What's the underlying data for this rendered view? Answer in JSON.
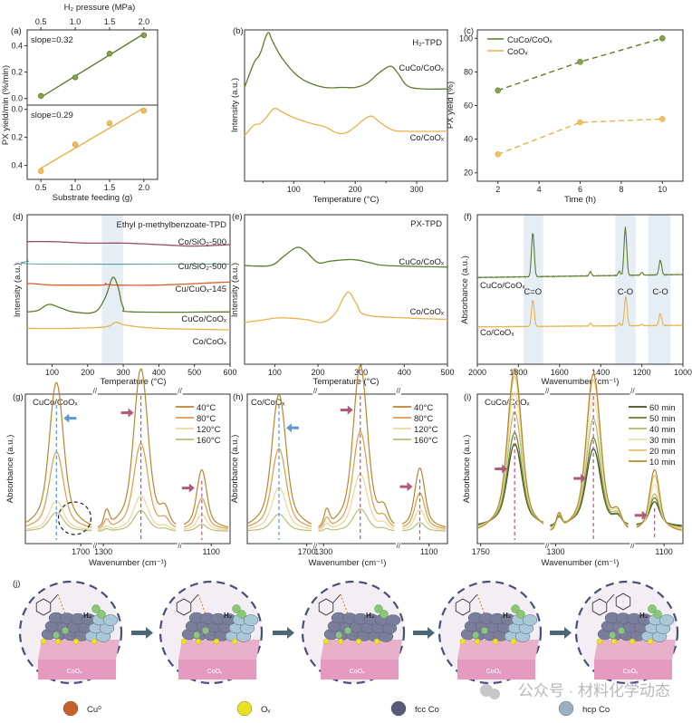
{
  "colors": {
    "green": "#5f7a2e",
    "orange": "#e8b24a",
    "pink": "#b05a7a",
    "blue": "#5a9bd5",
    "axis": "#222222",
    "band": "#e6eef5",
    "purple": "#8a4a6a",
    "teal": "#2a8a80",
    "red_orange": "#d9602a"
  },
  "chart_data": [
    {
      "id": "a",
      "type": "scatter",
      "panel_label": "(a)",
      "top_xlabel": "H₂ pressure (MPa)",
      "top_xticks": [
        "0.5",
        "1.0",
        "1.5",
        "2.0"
      ],
      "xlabel": "Substrate feeding (g)",
      "xticks": [
        "0.5",
        "1.0",
        "1.5",
        "2.0"
      ],
      "xlim": [
        0.3,
        2.2
      ],
      "ylabel": "PX yield/min (%/min)",
      "upper": {
        "yticks": [
          "0.0",
          "0.2",
          "0.4"
        ],
        "ylim": [
          -0.05,
          0.52
        ],
        "slope_label": "slope=0.32",
        "x": [
          0.5,
          1.0,
          1.5,
          2.0
        ],
        "y": [
          0.02,
          0.16,
          0.34,
          0.48
        ],
        "fit": [
          [
            0.5,
            0.01
          ],
          [
            2.0,
            0.49
          ]
        ]
      },
      "lower": {
        "yticks": [
          "0.0",
          "0.2",
          "0.4"
        ],
        "ylim": [
          0.5,
          -0.03
        ],
        "slope_label": "slope=0.29",
        "x": [
          0.5,
          1.0,
          1.5,
          2.0
        ],
        "y": [
          0.44,
          0.25,
          0.1,
          0.01
        ],
        "fit": [
          [
            0.5,
            0.42
          ],
          [
            2.0,
            -0.01
          ]
        ]
      }
    },
    {
      "id": "b",
      "type": "line",
      "panel_label": "(b)",
      "title": "H₂-TPD",
      "xlabel": "Temperature (°C)",
      "ylabel": "Intensity (a.u.)",
      "xticks": [
        "100",
        "200",
        "300"
      ],
      "xlim": [
        20,
        350
      ],
      "series": [
        {
          "name": "CuCo/CoOₓ",
          "points": [
            [
              20,
              0.62
            ],
            [
              35,
              0.78
            ],
            [
              45,
              0.84
            ],
            [
              55,
              0.96
            ],
            [
              60,
              0.98
            ],
            [
              65,
              0.93
            ],
            [
              80,
              0.82
            ],
            [
              100,
              0.72
            ],
            [
              120,
              0.66
            ],
            [
              150,
              0.62
            ],
            [
              180,
              0.62
            ],
            [
              200,
              0.62
            ],
            [
              220,
              0.65
            ],
            [
              240,
              0.72
            ],
            [
              258,
              0.76
            ],
            [
              270,
              0.71
            ],
            [
              285,
              0.63
            ],
            [
              310,
              0.61
            ],
            [
              350,
              0.61
            ]
          ]
        },
        {
          "name": "Co/CoOₓ",
          "points": [
            [
              20,
              0.3
            ],
            [
              35,
              0.37
            ],
            [
              45,
              0.38
            ],
            [
              55,
              0.42
            ],
            [
              68,
              0.48
            ],
            [
              80,
              0.46
            ],
            [
              100,
              0.42
            ],
            [
              130,
              0.38
            ],
            [
              150,
              0.36
            ],
            [
              170,
              0.32
            ],
            [
              185,
              0.32
            ],
            [
              200,
              0.36
            ],
            [
              215,
              0.41
            ],
            [
              227,
              0.43
            ],
            [
              240,
              0.39
            ],
            [
              260,
              0.34
            ],
            [
              280,
              0.33
            ],
            [
              350,
              0.33
            ]
          ]
        }
      ]
    },
    {
      "id": "c",
      "type": "line",
      "panel_label": "(c)",
      "xlabel": "Time (h)",
      "ylabel": "PX yield (%)",
      "xticks": [
        "2",
        "4",
        "6",
        "8",
        "10"
      ],
      "yticks": [
        "20",
        "40",
        "60",
        "80",
        "100"
      ],
      "xlim": [
        1,
        11
      ],
      "ylim": [
        15,
        105
      ],
      "series": [
        {
          "name": "CuCo/CoOₓ",
          "x": [
            2,
            6,
            10
          ],
          "y": [
            69,
            86,
            100
          ]
        },
        {
          "name": "CoOₓ",
          "x": [
            2,
            6,
            10
          ],
          "y": [
            31,
            50,
            52
          ]
        }
      ],
      "legend": "top-left"
    },
    {
      "id": "d",
      "type": "line",
      "panel_label": "(d)",
      "title": "Ethyl p-methylbenzoate-TPD",
      "xlabel": "Temperature (°C)",
      "ylabel": "Intensity (a.u.)",
      "xticks": [
        "100",
        "200",
        "300",
        "400",
        "500",
        "600"
      ],
      "xlim": [
        30,
        600
      ],
      "highlight_band": [
        240,
        300
      ],
      "series": [
        {
          "name": "Co/SiO₂-500",
          "points": [
            [
              30,
              0.82
            ],
            [
              100,
              0.82
            ],
            [
              200,
              0.81
            ],
            [
              300,
              0.81
            ],
            [
              400,
              0.8
            ],
            [
              500,
              0.79
            ],
            [
              600,
              0.8
            ]
          ]
        },
        {
          "name": "Cu/SiO₂-500",
          "points": [
            [
              30,
              0.68
            ],
            [
              35,
              0.69
            ],
            [
              60,
              0.67
            ],
            [
              600,
              0.67
            ]
          ]
        },
        {
          "name": "Cu/CuOₓ-145",
          "points": [
            [
              30,
              0.53
            ],
            [
              40,
              0.54
            ],
            [
              100,
              0.53
            ],
            [
              240,
              0.53
            ],
            [
              250,
              0.54
            ],
            [
              270,
              0.53
            ],
            [
              400,
              0.53
            ],
            [
              600,
              0.55
            ]
          ]
        },
        {
          "name": "CuCo/CoOₓ",
          "points": [
            [
              30,
              0.35
            ],
            [
              60,
              0.36
            ],
            [
              90,
              0.4
            ],
            [
              120,
              0.38
            ],
            [
              160,
              0.35
            ],
            [
              220,
              0.35
            ],
            [
              250,
              0.45
            ],
            [
              270,
              0.58
            ],
            [
              285,
              0.52
            ],
            [
              300,
              0.38
            ],
            [
              330,
              0.35
            ],
            [
              600,
              0.35
            ]
          ]
        },
        {
          "name": "Co/CoOₓ",
          "points": [
            [
              30,
              0.24
            ],
            [
              150,
              0.24
            ],
            [
              250,
              0.25
            ],
            [
              280,
              0.28
            ],
            [
              310,
              0.26
            ],
            [
              400,
              0.24
            ],
            [
              600,
              0.23
            ]
          ]
        }
      ]
    },
    {
      "id": "e",
      "type": "line",
      "panel_label": "(e)",
      "title": "PX-TPD",
      "xlabel": "Temperature (°C)",
      "ylabel": "Intensity (a.u.)",
      "xticks": [
        "100",
        "200",
        "300",
        "400",
        "500"
      ],
      "xlim": [
        30,
        500
      ],
      "series": [
        {
          "name": "CuCo/CoOₓ",
          "points": [
            [
              30,
              0.66
            ],
            [
              90,
              0.66
            ],
            [
              120,
              0.72
            ],
            [
              150,
              0.78
            ],
            [
              170,
              0.76
            ],
            [
              200,
              0.68
            ],
            [
              230,
              0.69
            ],
            [
              280,
              0.7
            ],
            [
              320,
              0.68
            ],
            [
              360,
              0.66
            ],
            [
              500,
              0.65
            ]
          ]
        },
        {
          "name": "Co/CoOₓ",
          "points": [
            [
              30,
              0.28
            ],
            [
              60,
              0.29
            ],
            [
              110,
              0.31
            ],
            [
              170,
              0.3
            ],
            [
              210,
              0.28
            ],
            [
              240,
              0.34
            ],
            [
              260,
              0.45
            ],
            [
              273,
              0.48
            ],
            [
              290,
              0.4
            ],
            [
              310,
              0.33
            ],
            [
              400,
              0.31
            ],
            [
              500,
              0.3
            ]
          ]
        }
      ]
    },
    {
      "id": "f",
      "type": "line",
      "panel_label": "(f)",
      "xlabel": "Wavenumber (cm⁻¹)",
      "ylabel": "Absorbance (a.u.)",
      "xticks": [
        "2000",
        "1800",
        "1600",
        "1400",
        "1200",
        "1000"
      ],
      "xlim": [
        2000,
        1000
      ],
      "bands": [
        [
          1775,
          1680
        ],
        [
          1330,
          1230
        ],
        [
          1170,
          1060
        ]
      ],
      "band_labels": [
        {
          "text": "C=O",
          "x": 1730
        },
        {
          "text": "C-O",
          "x": 1280
        },
        {
          "text": "C-O",
          "x": 1110
        }
      ],
      "series": [
        {
          "name": "CuCo/CoOₓ",
          "peaks": [
            [
              1730,
              0.3
            ],
            [
              1280,
              0.32
            ],
            [
              1110,
              0.1
            ],
            [
              1450,
              0.03
            ],
            [
              1310,
              0.03
            ],
            [
              1200,
              0.02
            ]
          ],
          "baseline": 0.58
        },
        {
          "name": "Co/CoOₓ",
          "peaks": [
            [
              1730,
              0.18
            ],
            [
              1278,
              0.2
            ],
            [
              1110,
              0.08
            ],
            [
              1450,
              0.02
            ],
            [
              1310,
              0.02
            ],
            [
              1200,
              0.01
            ]
          ],
          "baseline": 0.25
        }
      ]
    },
    {
      "id": "g",
      "type": "line",
      "panel_label": "(g)",
      "title": "CuCo/CoOₓ",
      "xlabel": "Wavenumber (cm⁻¹)",
      "ylabel": "Absorbance (a.u.)",
      "xticks": [
        "1700",
        "1300",
        "1100"
      ],
      "legend": [
        "40°C",
        "80°C",
        "120°C",
        "160°C"
      ],
      "series_colors": [
        "#b8862e",
        "#e09a4a",
        "#f0d49a",
        "#b5c07a"
      ],
      "peak_heights": [
        [
          0.85,
          0.93,
          0.34
        ],
        [
          0.45,
          0.5,
          0.18
        ],
        [
          0.17,
          0.2,
          0.09
        ],
        [
          0.11,
          0.12,
          0.04
        ]
      ]
    },
    {
      "id": "h",
      "type": "line",
      "panel_label": "(h)",
      "title": "Co/CoOₓ",
      "xlabel": "Wavenumber (cm⁻¹)",
      "ylabel": "Absorbance (a.u.)",
      "xticks": [
        "1700",
        "1300",
        "1100"
      ],
      "legend": [
        "40°C",
        "80°C",
        "120°C",
        "160°C"
      ],
      "series_colors": [
        "#b8862e",
        "#e09a4a",
        "#f0d49a",
        "#b5c07a"
      ],
      "peak_heights": [
        [
          0.78,
          0.95,
          0.35
        ],
        [
          0.47,
          0.57,
          0.21
        ],
        [
          0.25,
          0.33,
          0.12
        ],
        [
          0.1,
          0.13,
          0.05
        ]
      ]
    },
    {
      "id": "i",
      "type": "line",
      "panel_label": "(i)",
      "title": "CuCo/CoOₓ",
      "xlabel": "Wavenumber (cm⁻¹)",
      "ylabel": "Absorbance (a.u.)",
      "xticks": [
        "1750",
        "1300",
        "1100"
      ],
      "legend": [
        "60 min",
        "50 min",
        "40 min",
        "30 min",
        "20 min",
        "10 min"
      ],
      "series_colors": [
        "#3e4f1a",
        "#6a7f2e",
        "#a9bf70",
        "#f5dfa8",
        "#e8c064",
        "#b8862e"
      ],
      "peak_heights": [
        [
          0.48,
          0.45,
          0.14
        ],
        [
          0.55,
          0.52,
          0.17
        ],
        [
          0.68,
          0.64,
          0.2
        ],
        [
          0.8,
          0.76,
          0.26
        ],
        [
          0.9,
          0.88,
          0.32
        ],
        [
          0.95,
          0.92,
          0.36
        ]
      ]
    }
  ],
  "scheme": {
    "panel_label": "(j)",
    "support_label": "CoOₓ",
    "h2_label": "H₂",
    "legend": [
      {
        "label": "Cu⁰",
        "color": "#c8602a"
      },
      {
        "label": "Oᵥ",
        "color": "#e8e020"
      },
      {
        "label": "fcc Co",
        "color": "#5a5a78"
      },
      {
        "label": "hcp Co",
        "color": "#9ab0c0"
      }
    ],
    "watermark": "公众号 · 材料化学动态"
  }
}
